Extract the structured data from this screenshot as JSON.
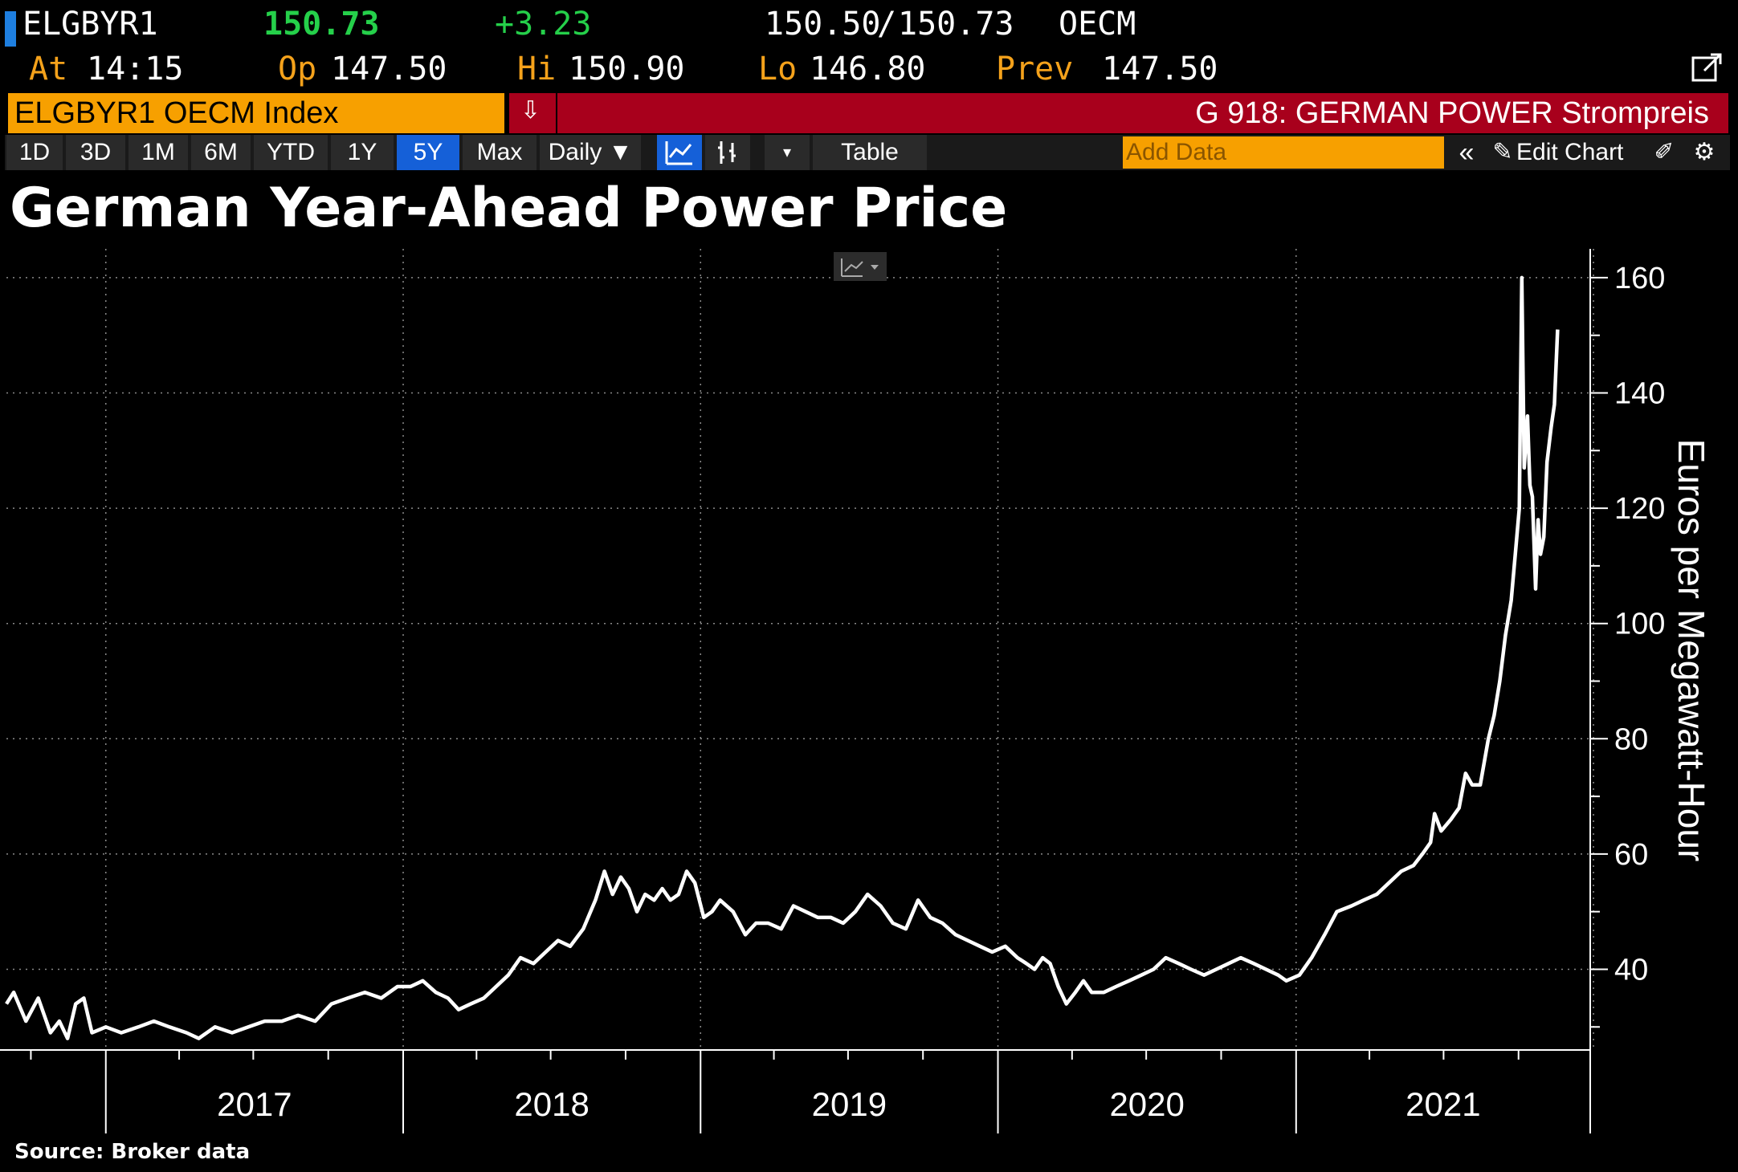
{
  "quote": {
    "ticker": "ELGBYR1",
    "last": "150.73",
    "change": "+3.23",
    "bid": "150.50",
    "ask": "150.73",
    "source": "OECM",
    "at_label": "At",
    "at_time": "14:15",
    "open_label": "Op",
    "open": "147.50",
    "high_label": "Hi",
    "high": "150.90",
    "low_label": "Lo",
    "low": "146.80",
    "prev_label": "Prev",
    "prev": "147.50"
  },
  "security_bar": {
    "security": "ELGBYR1 OECM Index",
    "function": "G 918: GERMAN POWER Strompreis"
  },
  "toolbar": {
    "ranges": [
      "1D",
      "3D",
      "1M",
      "6M",
      "YTD",
      "1Y",
      "5Y",
      "Max"
    ],
    "selected_range": "5Y",
    "frequency": "Daily ▼",
    "table_label": "Table",
    "add_data_placeholder": "Add Data",
    "edit_chart_label": "Edit Chart"
  },
  "colors": {
    "brand_orange": "#f7a000",
    "brand_red": "#a8001c",
    "selected_blue": "#1560d8",
    "positive_green": "#25d04a",
    "line": "#ffffff"
  },
  "chart_data": {
    "type": "line",
    "title": "German Year-Ahead Power Price",
    "ylabel": "Euros per Megawatt-Hour",
    "xlabel": "",
    "source": "Source: Broker data",
    "ylim": [
      26,
      165
    ],
    "xlim": [
      "2016-09-01",
      "2021-09-28"
    ],
    "y_ticks": [
      40,
      60,
      80,
      100,
      120,
      140,
      160
    ],
    "x_tick_labels": [
      "2017",
      "2018",
      "2019",
      "2020",
      "2021"
    ],
    "grid": true,
    "y_axis_side": "right",
    "series": [
      {
        "values": [
          [
            "2016-09-01",
            34
          ],
          [
            "2016-09-10",
            36
          ],
          [
            "2016-09-25",
            31
          ],
          [
            "2016-10-10",
            35
          ],
          [
            "2016-10-25",
            29
          ],
          [
            "2016-11-05",
            31
          ],
          [
            "2016-11-15",
            28
          ],
          [
            "2016-11-25",
            34
          ],
          [
            "2016-12-05",
            35
          ],
          [
            "2016-12-15",
            29
          ],
          [
            "2017-01-01",
            30
          ],
          [
            "2017-01-20",
            29
          ],
          [
            "2017-02-10",
            30
          ],
          [
            "2017-03-01",
            31
          ],
          [
            "2017-03-20",
            30
          ],
          [
            "2017-04-10",
            29
          ],
          [
            "2017-04-25",
            28
          ],
          [
            "2017-05-15",
            30
          ],
          [
            "2017-06-05",
            29
          ],
          [
            "2017-06-25",
            30
          ],
          [
            "2017-07-15",
            31
          ],
          [
            "2017-08-05",
            31
          ],
          [
            "2017-08-25",
            32
          ],
          [
            "2017-09-15",
            31
          ],
          [
            "2017-10-05",
            34
          ],
          [
            "2017-10-25",
            35
          ],
          [
            "2017-11-15",
            36
          ],
          [
            "2017-12-05",
            35
          ],
          [
            "2017-12-25",
            37
          ],
          [
            "2018-01-10",
            37
          ],
          [
            "2018-01-25",
            38
          ],
          [
            "2018-02-10",
            36
          ],
          [
            "2018-02-25",
            35
          ],
          [
            "2018-03-10",
            33
          ],
          [
            "2018-03-25",
            34
          ],
          [
            "2018-04-10",
            35
          ],
          [
            "2018-04-25",
            37
          ],
          [
            "2018-05-10",
            39
          ],
          [
            "2018-05-25",
            42
          ],
          [
            "2018-06-10",
            41
          ],
          [
            "2018-06-25",
            43
          ],
          [
            "2018-07-10",
            45
          ],
          [
            "2018-07-25",
            44
          ],
          [
            "2018-08-10",
            47
          ],
          [
            "2018-08-25",
            52
          ],
          [
            "2018-09-05",
            57
          ],
          [
            "2018-09-15",
            53
          ],
          [
            "2018-09-25",
            56
          ],
          [
            "2018-10-05",
            54
          ],
          [
            "2018-10-15",
            50
          ],
          [
            "2018-10-25",
            53
          ],
          [
            "2018-11-05",
            52
          ],
          [
            "2018-11-15",
            54
          ],
          [
            "2018-11-25",
            52
          ],
          [
            "2018-12-05",
            53
          ],
          [
            "2018-12-15",
            57
          ],
          [
            "2018-12-25",
            55
          ],
          [
            "2019-01-05",
            49
          ],
          [
            "2019-01-15",
            50
          ],
          [
            "2019-01-25",
            52
          ],
          [
            "2019-02-10",
            50
          ],
          [
            "2019-02-25",
            46
          ],
          [
            "2019-03-10",
            48
          ],
          [
            "2019-03-25",
            48
          ],
          [
            "2019-04-10",
            47
          ],
          [
            "2019-04-25",
            51
          ],
          [
            "2019-05-10",
            50
          ],
          [
            "2019-05-25",
            49
          ],
          [
            "2019-06-10",
            49
          ],
          [
            "2019-06-25",
            48
          ],
          [
            "2019-07-10",
            50
          ],
          [
            "2019-07-25",
            53
          ],
          [
            "2019-08-10",
            51
          ],
          [
            "2019-08-25",
            48
          ],
          [
            "2019-09-10",
            47
          ],
          [
            "2019-09-25",
            52
          ],
          [
            "2019-10-10",
            49
          ],
          [
            "2019-10-25",
            48
          ],
          [
            "2019-11-10",
            46
          ],
          [
            "2019-11-25",
            45
          ],
          [
            "2019-12-10",
            44
          ],
          [
            "2019-12-25",
            43
          ],
          [
            "2020-01-10",
            44
          ],
          [
            "2020-01-25",
            42
          ],
          [
            "2020-02-05",
            41
          ],
          [
            "2020-02-15",
            40
          ],
          [
            "2020-02-25",
            42
          ],
          [
            "2020-03-05",
            41
          ],
          [
            "2020-03-15",
            37
          ],
          [
            "2020-03-25",
            34
          ],
          [
            "2020-04-05",
            36
          ],
          [
            "2020-04-15",
            38
          ],
          [
            "2020-04-25",
            36
          ],
          [
            "2020-05-10",
            36
          ],
          [
            "2020-05-25",
            37
          ],
          [
            "2020-06-10",
            38
          ],
          [
            "2020-06-25",
            39
          ],
          [
            "2020-07-10",
            40
          ],
          [
            "2020-07-25",
            42
          ],
          [
            "2020-08-10",
            41
          ],
          [
            "2020-08-25",
            40
          ],
          [
            "2020-09-10",
            39
          ],
          [
            "2020-09-25",
            40
          ],
          [
            "2020-10-10",
            41
          ],
          [
            "2020-10-25",
            42
          ],
          [
            "2020-11-10",
            41
          ],
          [
            "2020-11-25",
            40
          ],
          [
            "2020-12-10",
            39
          ],
          [
            "2020-12-20",
            38
          ],
          [
            "2021-01-05",
            39
          ],
          [
            "2021-01-20",
            42
          ],
          [
            "2021-02-05",
            46
          ],
          [
            "2021-02-20",
            50
          ],
          [
            "2021-03-10",
            51
          ],
          [
            "2021-03-25",
            52
          ],
          [
            "2021-04-10",
            53
          ],
          [
            "2021-04-25",
            55
          ],
          [
            "2021-05-10",
            57
          ],
          [
            "2021-05-25",
            58
          ],
          [
            "2021-06-05",
            60
          ],
          [
            "2021-06-15",
            62
          ],
          [
            "2021-06-20",
            67
          ],
          [
            "2021-06-28",
            64
          ],
          [
            "2021-07-10",
            66
          ],
          [
            "2021-07-20",
            68
          ],
          [
            "2021-07-28",
            74
          ],
          [
            "2021-08-05",
            72
          ],
          [
            "2021-08-15",
            72
          ],
          [
            "2021-08-25",
            80
          ],
          [
            "2021-09-01",
            84
          ],
          [
            "2021-09-08",
            90
          ],
          [
            "2021-09-15",
            98
          ],
          [
            "2021-09-22",
            104
          ],
          [
            "2021-09-27",
            112
          ],
          [
            "2021-10-02",
            120
          ],
          [
            "2021-10-05",
            160
          ],
          [
            "2021-10-08",
            127
          ],
          [
            "2021-10-12",
            136
          ],
          [
            "2021-10-15",
            124
          ],
          [
            "2021-10-18",
            122
          ],
          [
            "2021-10-22",
            106
          ],
          [
            "2021-10-25",
            118
          ],
          [
            "2021-10-28",
            112
          ],
          [
            "2021-11-01",
            115
          ],
          [
            "2021-11-05",
            128
          ],
          [
            "2021-11-10",
            134
          ],
          [
            "2021-11-14",
            138
          ],
          [
            "2021-11-18",
            151
          ]
        ]
      }
    ]
  }
}
